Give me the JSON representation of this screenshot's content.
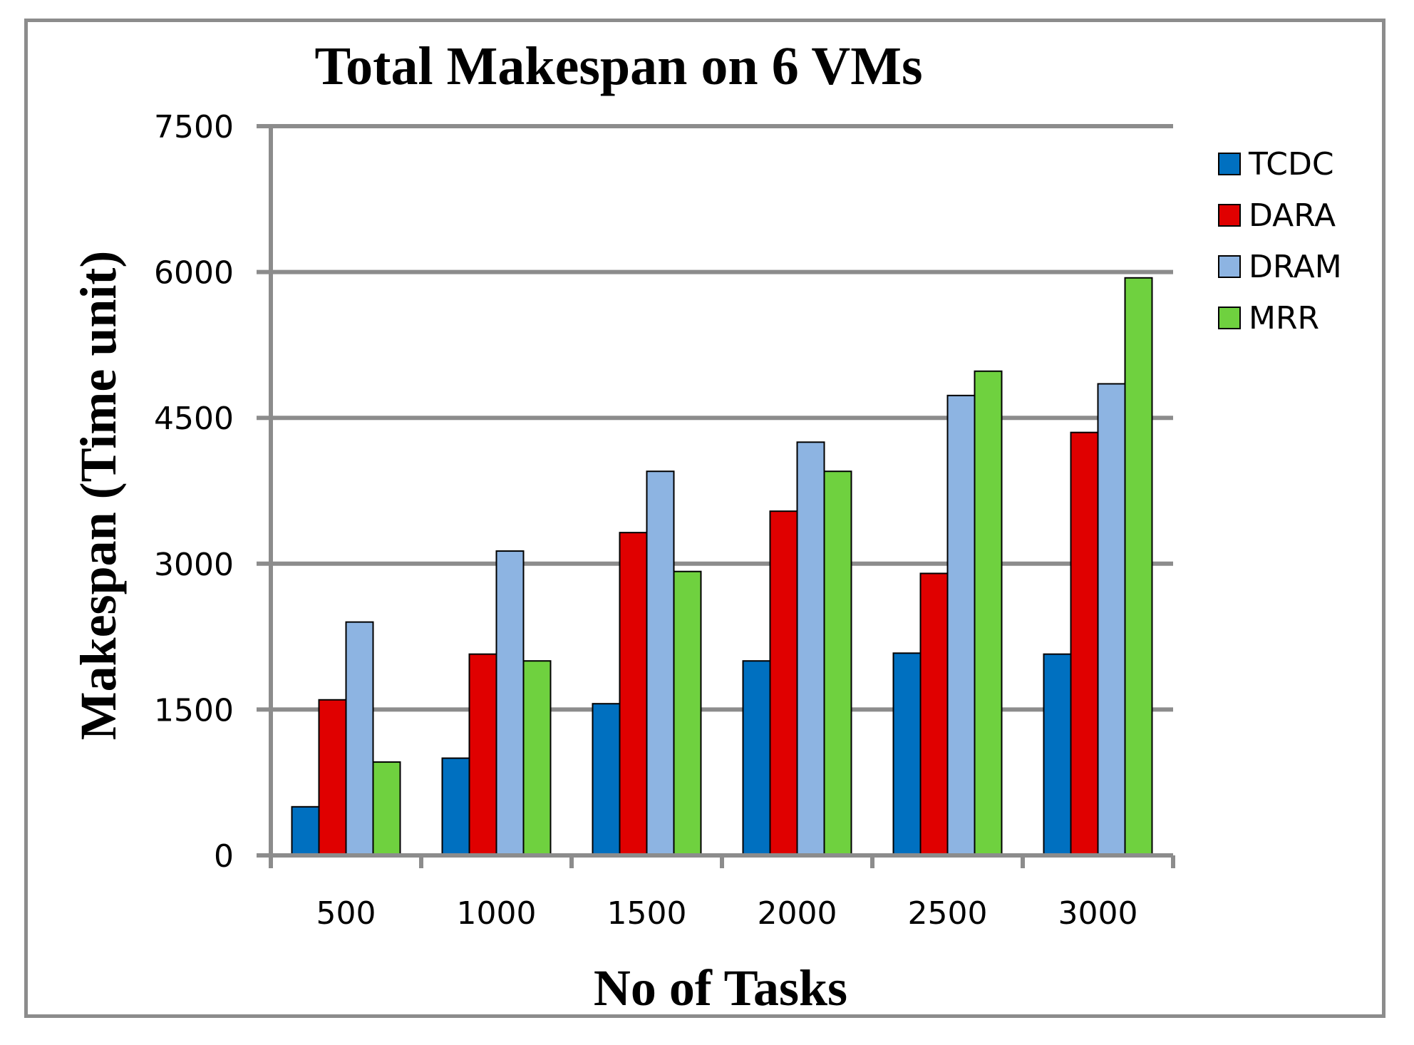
{
  "chart_data": {
    "type": "bar",
    "title": "Total Makespan on 6 VMs",
    "xlabel": "No of Tasks",
    "ylabel": "Makespan (Time unit)",
    "categories": [
      "500",
      "1000",
      "1500",
      "2000",
      "2500",
      "3000"
    ],
    "ylim": [
      0,
      7500
    ],
    "yticks": [
      "0",
      "1500",
      "3000",
      "4500",
      "6000",
      "7500"
    ],
    "grid": true,
    "legend_position": "right",
    "series": [
      {
        "name": "TCDC",
        "color": "#0070c0",
        "values": [
          500,
          1000,
          1560,
          2000,
          2080,
          2070
        ]
      },
      {
        "name": "DARA",
        "color": "#e00000",
        "values": [
          1600,
          2070,
          3320,
          3540,
          2900,
          4350
        ]
      },
      {
        "name": "DRAM",
        "color": "#8db4e2",
        "values": [
          2400,
          3130,
          3950,
          4250,
          4730,
          4850
        ]
      },
      {
        "name": "MRR",
        "color": "#6fd13f",
        "values": [
          960,
          2000,
          2920,
          3950,
          4980,
          5940
        ]
      }
    ]
  }
}
